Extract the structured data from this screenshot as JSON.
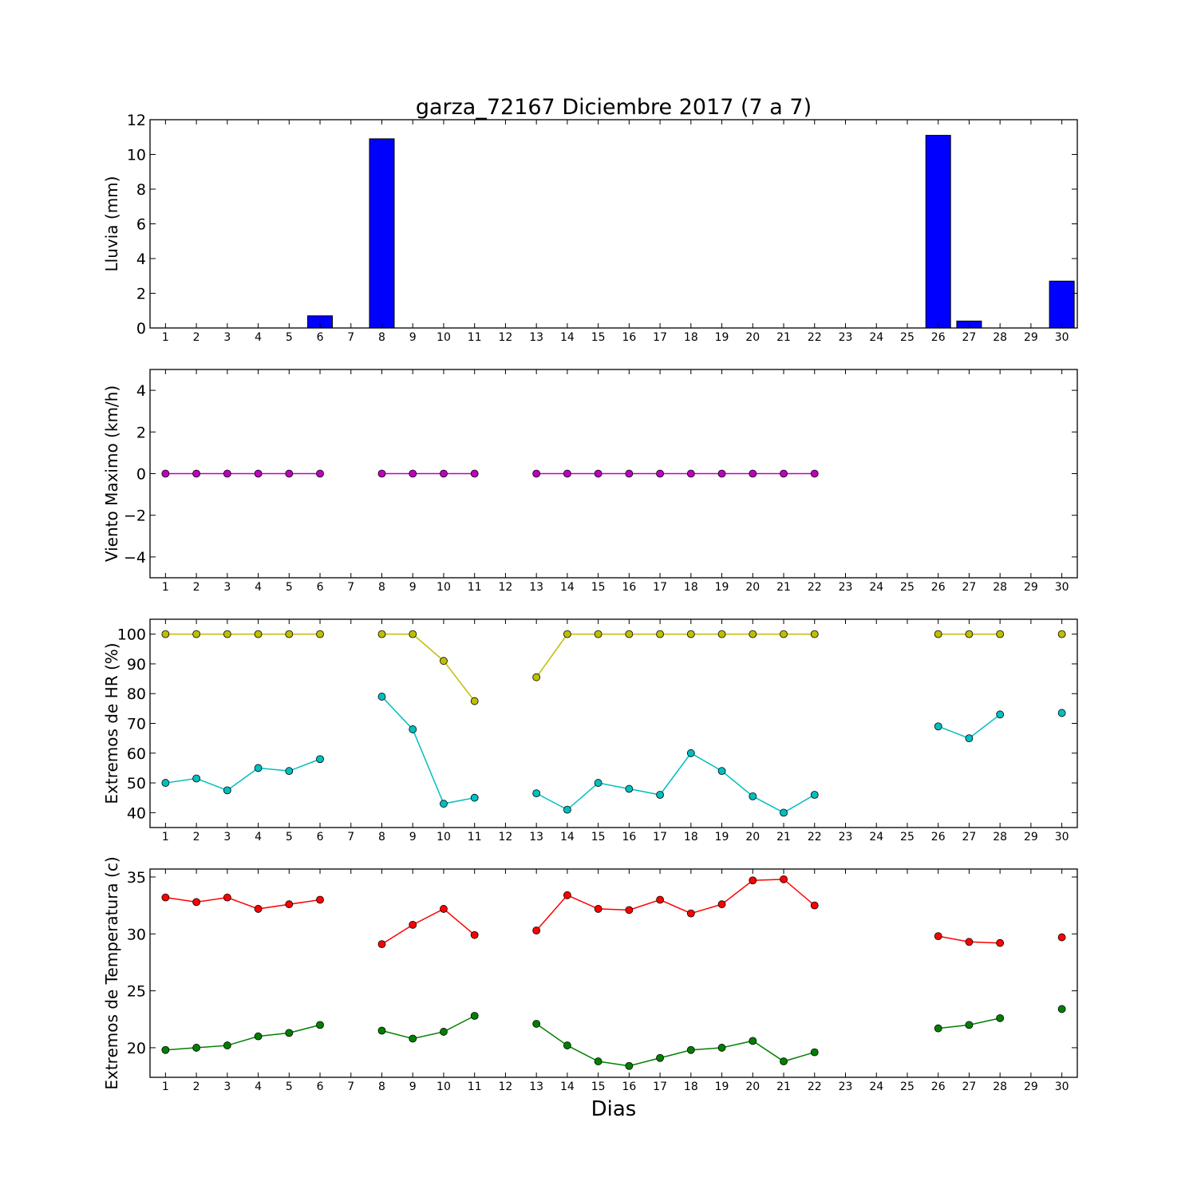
{
  "figure": {
    "title": "garza_72167 Diciembre 2017  (7 a 7)",
    "xlabel": "Dias"
  },
  "chart_data": [
    {
      "type": "bar",
      "ylabel": "Lluvia (mm)",
      "x_ticks": [
        1,
        2,
        3,
        4,
        5,
        6,
        7,
        8,
        9,
        10,
        11,
        12,
        13,
        14,
        15,
        16,
        17,
        18,
        19,
        20,
        21,
        22,
        23,
        24,
        25,
        26,
        27,
        28,
        29,
        30
      ],
      "xlim": [
        0.5,
        30.5
      ],
      "ylim": [
        0,
        12
      ],
      "y_ticks": [
        0,
        2,
        4,
        6,
        8,
        10,
        12
      ],
      "grid": false,
      "series": [
        {
          "color": "#0000ff",
          "x": [
            1,
            2,
            3,
            4,
            5,
            6,
            8,
            9,
            10,
            11,
            13,
            14,
            15,
            16,
            17,
            18,
            19,
            20,
            21,
            22,
            26,
            27,
            30
          ],
          "values": [
            0,
            0,
            0,
            0,
            0,
            0.7,
            10.9,
            0,
            0,
            0,
            0,
            0,
            0,
            0,
            0,
            0,
            0,
            0,
            0,
            0,
            11.1,
            0.4,
            2.7
          ]
        }
      ]
    },
    {
      "type": "line",
      "ylabel": "Viento Maximo (km/h)",
      "x_ticks": [
        1,
        2,
        3,
        4,
        5,
        6,
        7,
        8,
        9,
        10,
        11,
        12,
        13,
        14,
        15,
        16,
        17,
        18,
        19,
        20,
        21,
        22,
        23,
        24,
        25,
        26,
        27,
        28,
        29,
        30
      ],
      "xlim": [
        0.5,
        30.5
      ],
      "ylim": [
        -5,
        5
      ],
      "y_ticks": [
        -4,
        -2,
        0,
        2,
        4
      ],
      "grid": false,
      "series": [
        {
          "color": "#bf00bf",
          "x": [
            1,
            2,
            3,
            4,
            5,
            6,
            7,
            8,
            9,
            10,
            11,
            12,
            13,
            14,
            15,
            16,
            17,
            18,
            19,
            20,
            21,
            22
          ],
          "values": [
            0,
            0,
            0,
            0,
            0,
            0,
            null,
            0,
            0,
            0,
            0,
            null,
            0,
            0,
            0,
            0,
            0,
            0,
            0,
            0,
            0,
            0
          ]
        }
      ]
    },
    {
      "type": "line",
      "ylabel": "Extremos de HR (%)",
      "x_ticks": [
        1,
        2,
        3,
        4,
        5,
        6,
        7,
        8,
        9,
        10,
        11,
        12,
        13,
        14,
        15,
        16,
        17,
        18,
        19,
        20,
        21,
        22,
        23,
        24,
        25,
        26,
        27,
        28,
        29,
        30
      ],
      "xlim": [
        0.5,
        30.5
      ],
      "ylim": [
        35,
        105
      ],
      "y_ticks": [
        40,
        50,
        60,
        70,
        80,
        90,
        100
      ],
      "grid": false,
      "series": [
        {
          "color": "#bfbf00",
          "x": [
            1,
            2,
            3,
            4,
            5,
            6,
            7,
            8,
            9,
            10,
            11,
            12,
            13,
            14,
            15,
            16,
            17,
            18,
            19,
            20,
            21,
            22,
            23,
            24,
            25,
            26,
            27,
            28,
            29,
            30
          ],
          "values": [
            100,
            100,
            100,
            100,
            100,
            100,
            null,
            100,
            100,
            91,
            77.5,
            null,
            85.5,
            100,
            100,
            100,
            100,
            100,
            100,
            100,
            100,
            100,
            null,
            null,
            null,
            100,
            100,
            100,
            null,
            100
          ]
        },
        {
          "color": "#00bfbf",
          "x": [
            1,
            2,
            3,
            4,
            5,
            6,
            7,
            8,
            9,
            10,
            11,
            12,
            13,
            14,
            15,
            16,
            17,
            18,
            19,
            20,
            21,
            22,
            23,
            24,
            25,
            26,
            27,
            28,
            29,
            30
          ],
          "values": [
            50,
            51.5,
            47.5,
            55,
            54,
            58,
            null,
            79,
            68,
            43,
            45,
            null,
            46.5,
            41,
            50,
            48,
            46,
            60,
            54,
            45.5,
            40,
            46,
            null,
            null,
            null,
            69,
            65,
            73,
            null,
            73.5
          ]
        }
      ]
    },
    {
      "type": "line",
      "ylabel": "Extremos de Temperatura (c)",
      "x_ticks": [
        1,
        2,
        3,
        4,
        5,
        6,
        7,
        8,
        9,
        10,
        11,
        12,
        13,
        14,
        15,
        16,
        17,
        18,
        19,
        20,
        21,
        22,
        23,
        24,
        25,
        26,
        27,
        28,
        29,
        30
      ],
      "xlim": [
        0.5,
        30.5
      ],
      "ylim": [
        17.4,
        35.7
      ],
      "y_ticks": [
        20,
        25,
        30,
        35
      ],
      "grid": false,
      "series": [
        {
          "color": "#ff0000",
          "x": [
            1,
            2,
            3,
            4,
            5,
            6,
            7,
            8,
            9,
            10,
            11,
            12,
            13,
            14,
            15,
            16,
            17,
            18,
            19,
            20,
            21,
            22,
            23,
            24,
            25,
            26,
            27,
            28,
            29,
            30
          ],
          "values": [
            33.2,
            32.8,
            33.2,
            32.2,
            32.6,
            33,
            null,
            29.1,
            30.8,
            32.2,
            29.9,
            null,
            30.3,
            33.4,
            32.2,
            32.1,
            33,
            31.8,
            32.6,
            34.7,
            34.8,
            32.5,
            null,
            null,
            null,
            29.8,
            29.3,
            29.2,
            null,
            29.7
          ]
        },
        {
          "color": "#008000",
          "x": [
            1,
            2,
            3,
            4,
            5,
            6,
            7,
            8,
            9,
            10,
            11,
            12,
            13,
            14,
            15,
            16,
            17,
            18,
            19,
            20,
            21,
            22,
            23,
            24,
            25,
            26,
            27,
            28,
            29,
            30
          ],
          "values": [
            19.8,
            20,
            20.2,
            21,
            21.3,
            22,
            null,
            21.5,
            20.8,
            21.4,
            22.8,
            null,
            22.1,
            20.2,
            18.8,
            18.4,
            19.1,
            19.8,
            20,
            20.6,
            18.8,
            19.6,
            null,
            null,
            null,
            21.7,
            22,
            22.6,
            null,
            23.4
          ]
        }
      ]
    }
  ]
}
